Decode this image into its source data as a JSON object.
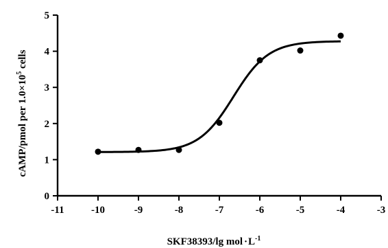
{
  "chart_data": {
    "type": "scatter",
    "xlabel_main": "SKF38393/lg mol",
    "xlabel_dot": "·",
    "xlabel_unit": "L",
    "xlabel_exp": "-1",
    "ylabel_main": "cAMP/pmol per 1.0×10",
    "ylabel_exp": "5",
    "ylabel_tail": " cells",
    "xlim": [
      -11,
      -3
    ],
    "ylim": [
      0,
      5
    ],
    "x_ticks": [
      "-11",
      "-10",
      "-9",
      "-8",
      "-7",
      "-6",
      "-5",
      "-4",
      "-3"
    ],
    "y_ticks": [
      "0",
      "1",
      "2",
      "3",
      "4",
      "5"
    ],
    "points": [
      {
        "x": -10,
        "y": 1.22
      },
      {
        "x": -9,
        "y": 1.27
      },
      {
        "x": -8,
        "y": 1.27
      },
      {
        "x": -7,
        "y": 2.02
      },
      {
        "x": -6,
        "y": 3.75
      },
      {
        "x": -5,
        "y": 4.02
      },
      {
        "x": -4,
        "y": 4.43
      }
    ],
    "fit": {
      "bottom": 1.21,
      "top": 4.28,
      "logEC50": -6.65,
      "hill": 1.0,
      "x_range": [
        -10,
        -4
      ]
    },
    "grid": false
  }
}
